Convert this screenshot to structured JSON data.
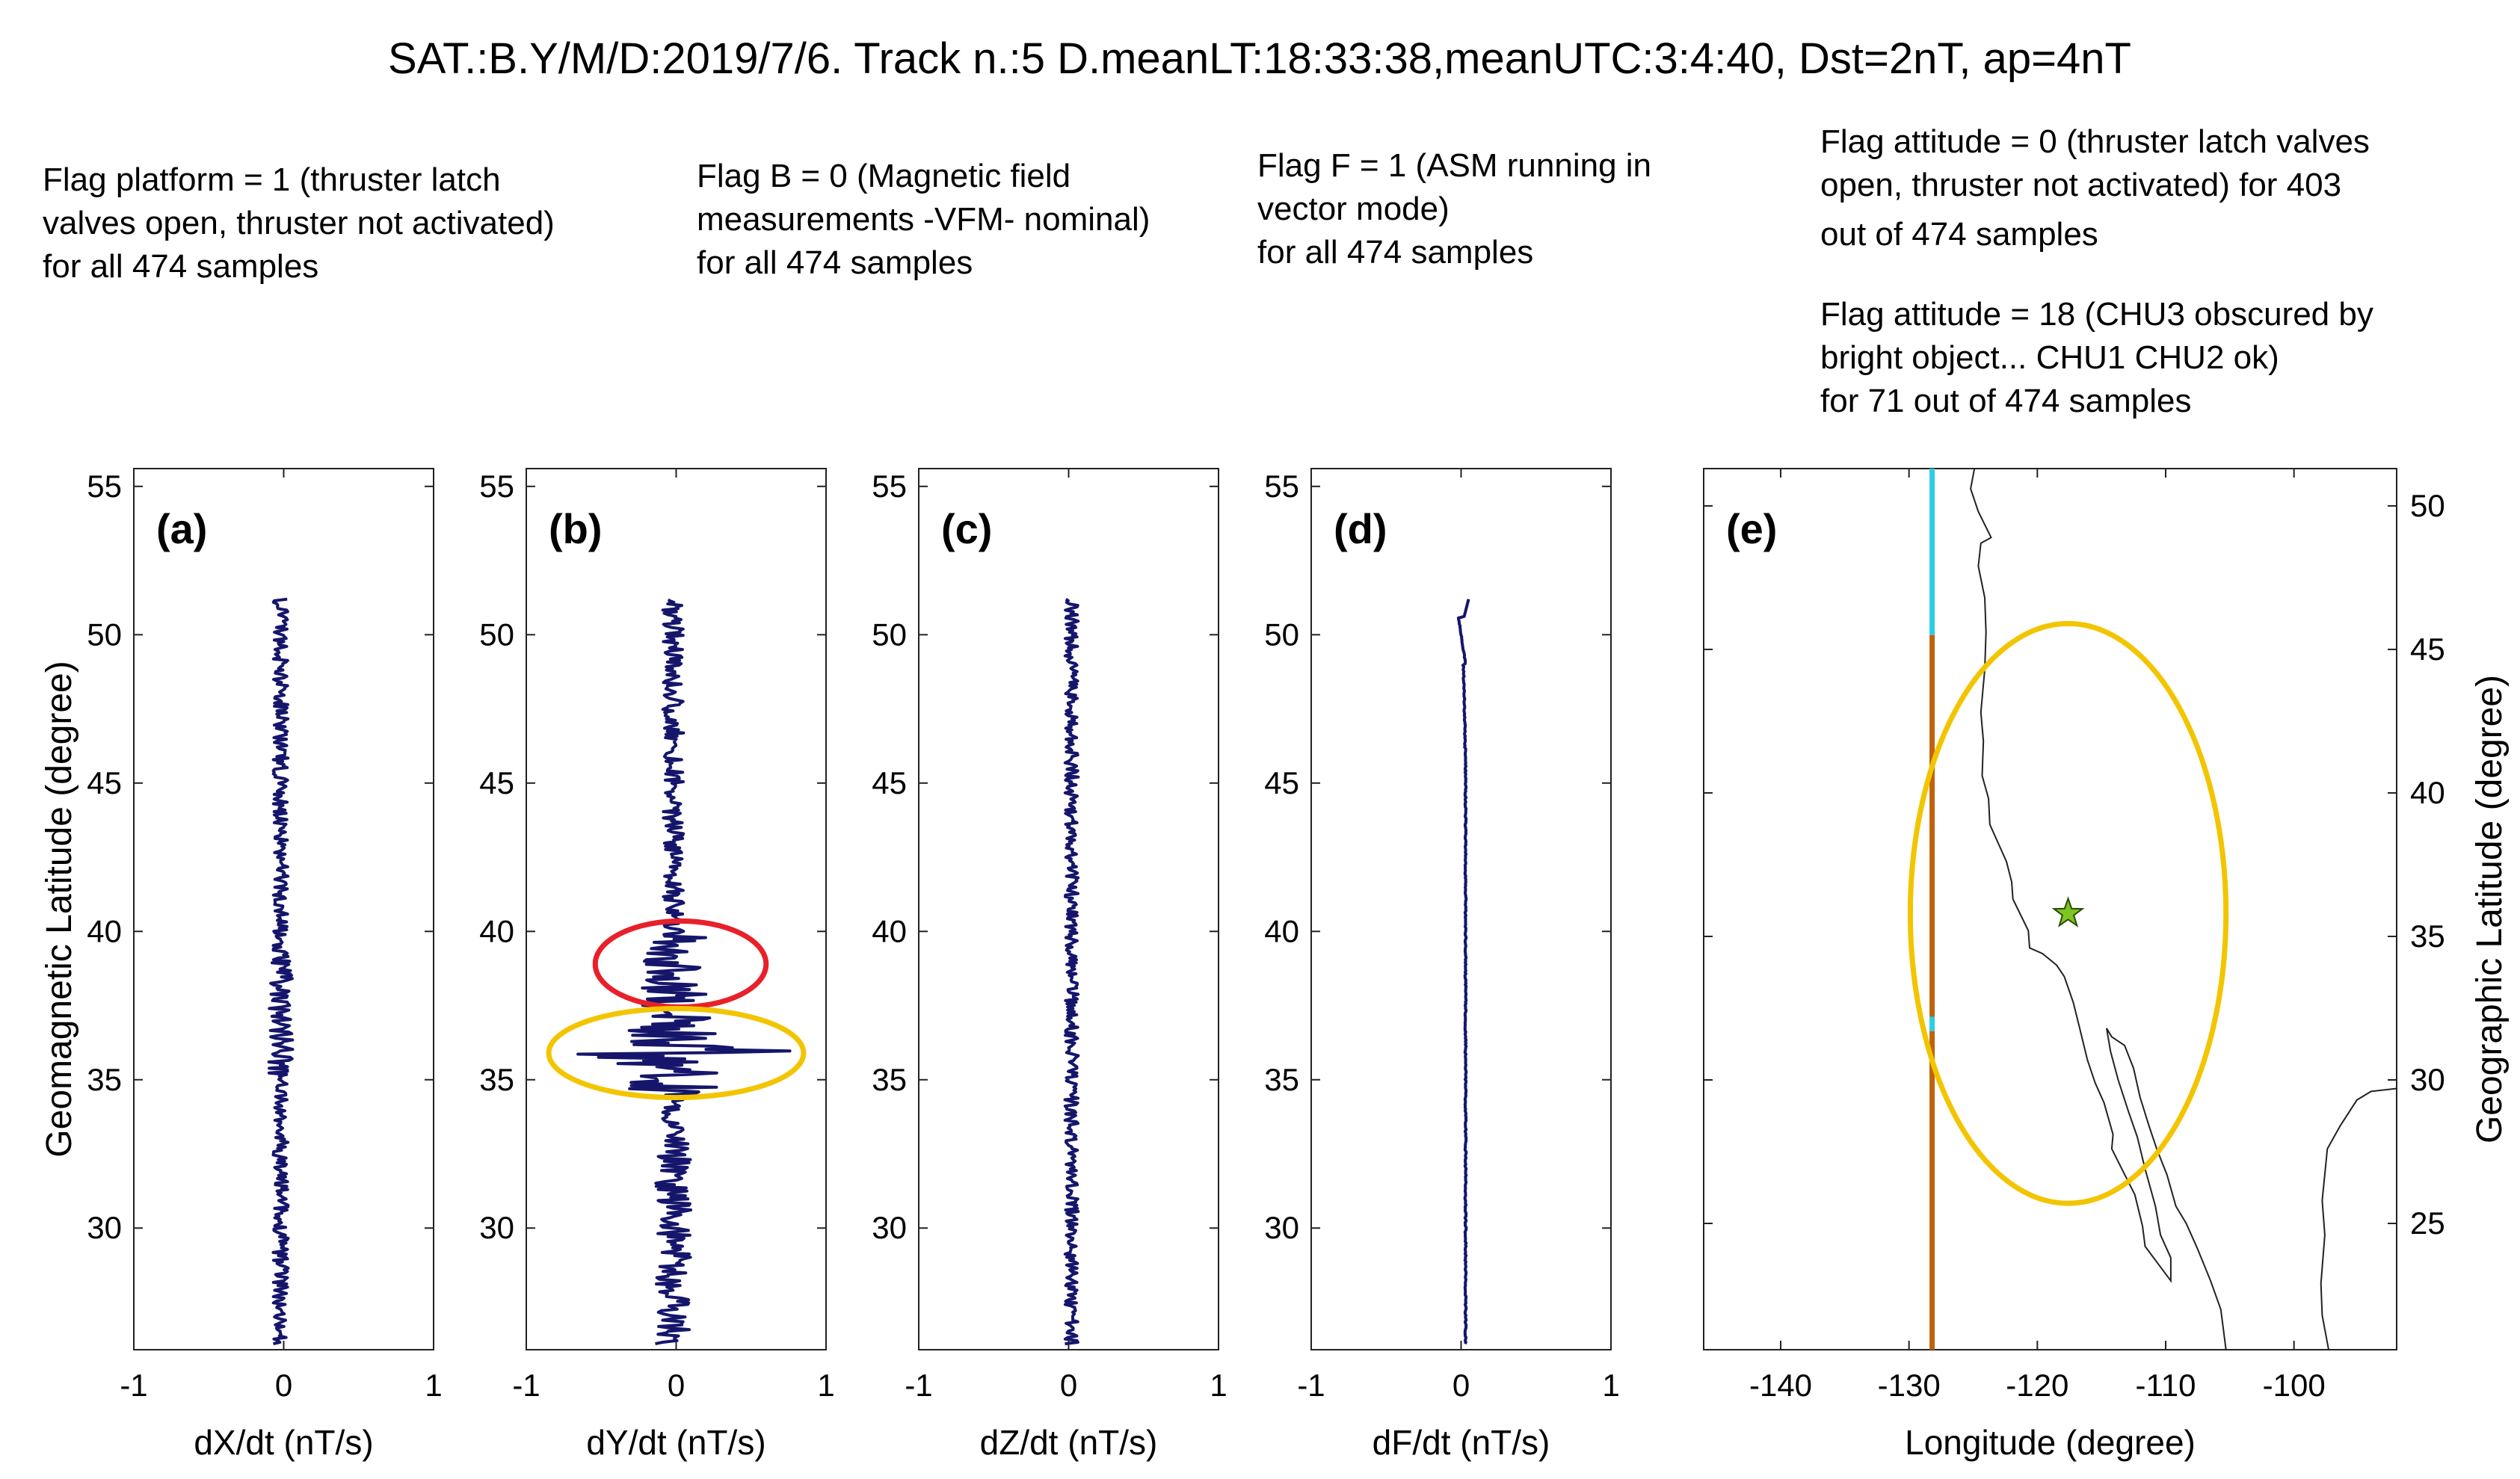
{
  "title": "SAT.:B.Y/M/D:2019/7/6. Track n.:5 D.meanLT:18:33:38,meanUTC:3:4:40, Dst=2nT, ap=4nT",
  "notes": {
    "platform": [
      "Flag platform = 1 (thruster latch",
      "valves open, thruster not activated)",
      "for all 474 samples"
    ],
    "flag_b": [
      "Flag B = 0 (Magnetic field",
      "measurements -VFM- nominal)",
      "for all 474 samples"
    ],
    "flag_f": [
      "Flag F = 1 (ASM running in",
      "vector mode)",
      "for all 474 samples"
    ],
    "attitude0": [
      "Flag attitude = 0 (thruster latch valves",
      "open, thruster not activated) for 403",
      "out of 474 samples"
    ],
    "attitude18": [
      "Flag attitude = 18 (CHU3 obscured by",
      "bright object... CHU1 CHU2 ok)",
      "for 71 out of 474 samples"
    ]
  },
  "colors": {
    "trace": "#15166b",
    "red_circle": "#e8202a",
    "yellow_circle": "#f2c500",
    "track_brown": "#c0620c",
    "track_cyan": "#2ccde6",
    "star": "#7dc520"
  },
  "chart_data": [
    {
      "type": "line",
      "panel_label": "(a)",
      "xlabel": "dX/dt (nT/s)",
      "ylabel": "Geomagnetic Latitude (degree)",
      "xlim": [
        -1,
        1
      ],
      "ylim": [
        25.9,
        55.6
      ],
      "xticks": [
        "-1",
        "0",
        "1"
      ],
      "yticks": [
        "30",
        "35",
        "40",
        "45",
        "50",
        "55"
      ],
      "trace": {
        "lat_range": [
          26.1,
          51.2
        ],
        "samples": 474,
        "center": -0.02,
        "amplitude": 0.05,
        "note": "values digitized approximately"
      }
    },
    {
      "type": "line",
      "panel_label": "(b)",
      "xlabel": "dY/dt (nT/s)",
      "ylabel": "",
      "xlim": [
        -1,
        1
      ],
      "ylim": [
        25.9,
        55.6
      ],
      "xticks": [
        "-1",
        "0",
        "1"
      ],
      "yticks": [
        "30",
        "35",
        "40",
        "45",
        "50",
        "55"
      ],
      "trace": {
        "lat_range": [
          26.1,
          51.2
        ],
        "samples": 474,
        "center": -0.02,
        "amplitude": 0.07,
        "spike_max": 0.75,
        "spike_min": -0.6
      },
      "highlights": [
        {
          "shape": "ellipse",
          "color": "red",
          "center_x": 0.03,
          "center_lat": 38.9,
          "half_width_x": 0.57,
          "half_height_lat": 1.45
        },
        {
          "shape": "ellipse",
          "color": "yellow",
          "center_x": 0.0,
          "center_lat": 35.9,
          "half_width_x": 0.85,
          "half_height_lat": 1.5
        }
      ]
    },
    {
      "type": "line",
      "panel_label": "(c)",
      "xlabel": "dZ/dt (nT/s)",
      "ylabel": "",
      "xlim": [
        -1,
        1
      ],
      "ylim": [
        25.9,
        55.6
      ],
      "xticks": [
        "-1",
        "0",
        "1"
      ],
      "yticks": [
        "30",
        "35",
        "40",
        "45",
        "50",
        "55"
      ],
      "trace": {
        "lat_range": [
          26.1,
          51.2
        ],
        "samples": 474,
        "center": 0.02,
        "amplitude": 0.045
      }
    },
    {
      "type": "line",
      "panel_label": "(d)",
      "xlabel": "dF/dt (nT/s)",
      "ylabel": "",
      "xlim": [
        -1,
        1
      ],
      "ylim": [
        25.9,
        55.6
      ],
      "xticks": [
        "-1",
        "0",
        "1"
      ],
      "yticks": [
        "30",
        "35",
        "40",
        "45",
        "50",
        "55"
      ],
      "trace": {
        "lat_range": [
          26.1,
          51.2
        ],
        "samples": 474,
        "center": 0.0,
        "amplitude": 0.008,
        "drift_to": 0.05
      }
    },
    {
      "type": "map",
      "panel_label": "(e)",
      "xlabel": "Longitude (degree)",
      "ylabel": "Geographic Latitude (degree)",
      "xlim": [
        -146,
        -92
      ],
      "ylim": [
        20.6,
        51.3
      ],
      "xticks": [
        "-140",
        "-130",
        "-120",
        "-110",
        "-100"
      ],
      "yticks": [
        "25",
        "30",
        "35",
        "40",
        "45",
        "50"
      ],
      "track": {
        "lon": -128.2,
        "segments": [
          {
            "color": "cyan",
            "lat_from": 45.5,
            "lat_to": 51.3
          },
          {
            "color": "brown",
            "lat_from": 32.2,
            "lat_to": 45.5
          },
          {
            "color": "cyan",
            "lat_from": 31.7,
            "lat_to": 32.2
          },
          {
            "color": "brown",
            "lat_from": 20.6,
            "lat_to": 31.7
          }
        ]
      },
      "epicenter_star": {
        "lon": -117.6,
        "lat": 35.8
      },
      "circle": {
        "center_lon": -117.6,
        "center_lat": 35.8,
        "half_width_lon": 12.3,
        "half_height_lat": 10.1
      }
    }
  ]
}
